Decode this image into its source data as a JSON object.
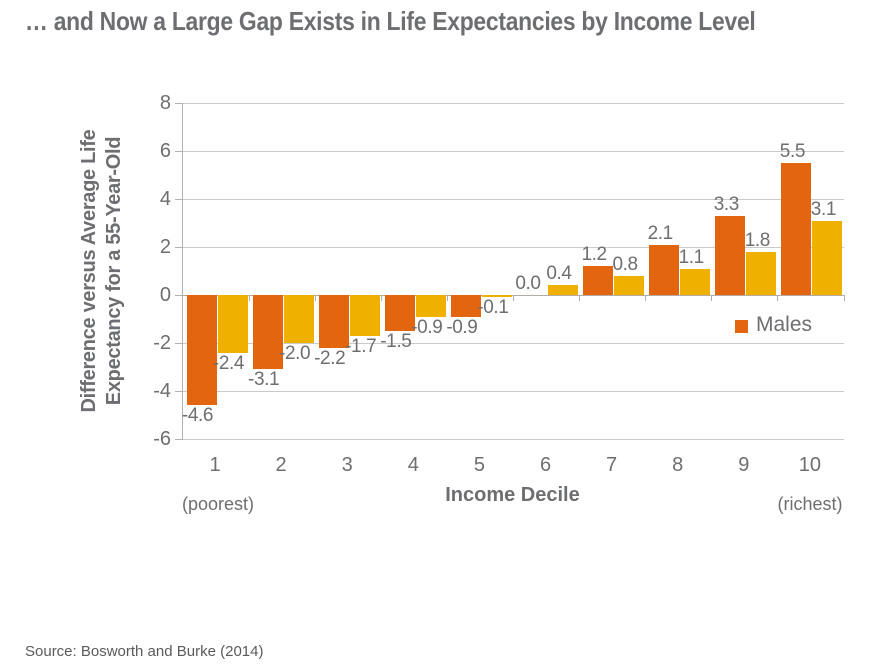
{
  "page": {
    "title": "… and Now a Large Gap Exists in Life Expectancies by Income Level",
    "source": "Source: Bosworth and Burke (2014)"
  },
  "chart_data": {
    "type": "bar",
    "title": "… and Now a Large Gap Exists in Life Expectancies by Income Level",
    "categories": [
      "1",
      "2",
      "3",
      "4",
      "5",
      "6",
      "7",
      "8",
      "9",
      "10"
    ],
    "series": [
      {
        "name": "Males",
        "color": "#e4650f",
        "values": [
          -4.6,
          -3.1,
          -2.2,
          -1.5,
          -0.9,
          0.0,
          1.2,
          2.1,
          3.3,
          5.5
        ],
        "labels": [
          "-4.6",
          "-3.1",
          "-2.2",
          "-1.5",
          "-0.9",
          "0.0",
          "1.2",
          "2.1",
          "3.3",
          "5.5"
        ]
      },
      {
        "name": "",
        "color": "#f0b000",
        "values": [
          -2.4,
          -2.0,
          -1.7,
          -0.9,
          -0.1,
          0.4,
          0.8,
          1.1,
          1.8,
          3.1
        ],
        "labels": [
          "-2.4",
          "-2.0",
          "-1.7",
          "-0.9",
          "-0.1",
          "0.4",
          "0.8",
          "1.1",
          "1.8",
          "3.1"
        ]
      }
    ],
    "ylabel": "Difference versus Average Life Expectancy for a 55-Year-Old",
    "ylabel_line1": "Difference versus Average Life",
    "ylabel_line2": "Expectancy for a 55-Year-Old",
    "xlabel": "Income Decile",
    "x_sub_left": "(poorest)",
    "x_sub_right": "(richest)",
    "ylim": [
      -6,
      8
    ],
    "yticks": [
      8,
      6,
      4,
      2,
      0,
      -2,
      -4,
      -6
    ],
    "grid": "horizontal",
    "data_labels": true,
    "legend": {
      "position": "inside-right",
      "entries": [
        {
          "label": "Males",
          "color": "#e4650f"
        }
      ]
    }
  },
  "colors": {
    "males_bar": "#e4650f",
    "second_bar": "#f0b000",
    "text_gray": "#6d6e71",
    "gridline": "#c9cacb",
    "zero_line": "#b3aca5",
    "axis_line": "#afb1b3",
    "source_text": "#5a5a5a"
  }
}
